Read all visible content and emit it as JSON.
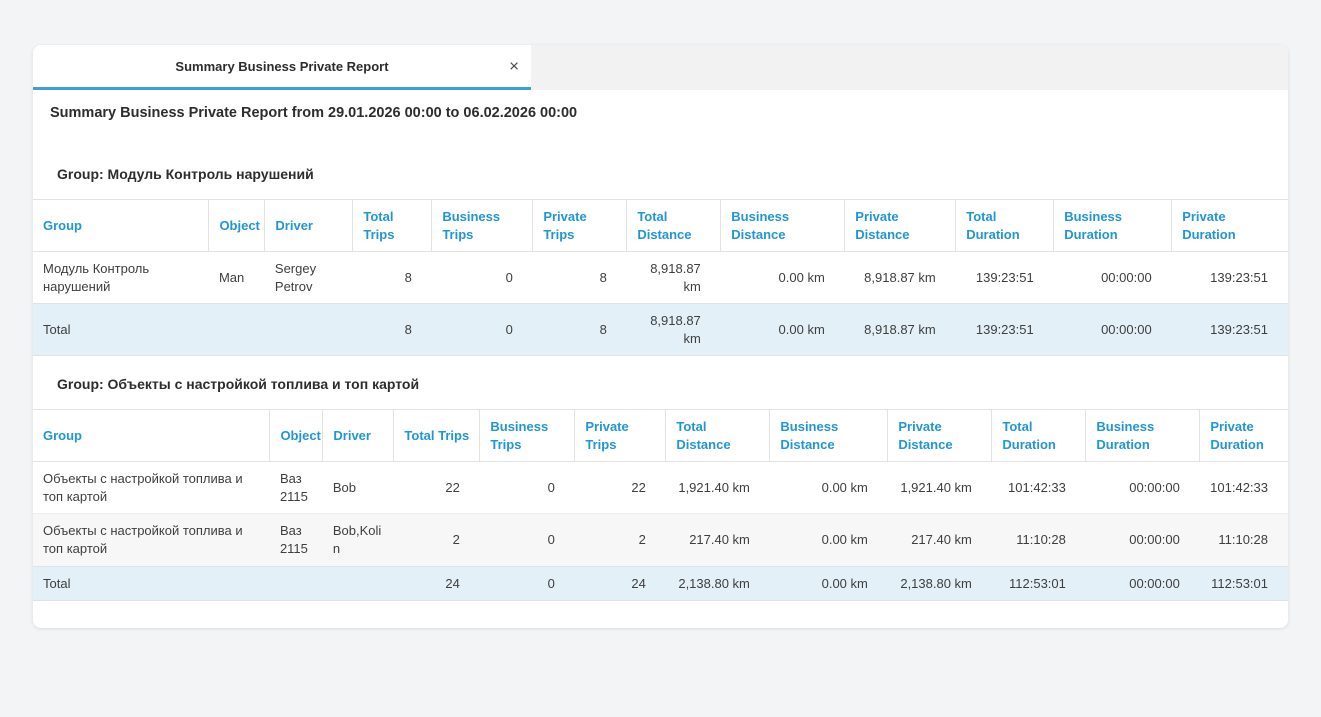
{
  "tab": {
    "title": "Summary Business Private Report",
    "close_icon": "×"
  },
  "report": {
    "title": "Summary Business Private Report from 29.01.2026 00:00 to 06.02.2026 00:00"
  },
  "columns": [
    "Group",
    "Object",
    "Driver",
    "Total Trips",
    "Business Trips",
    "Private Trips",
    "Total Distance",
    "Business Distance",
    "Private Distance",
    "Total Duration",
    "Business Duration",
    "Private Duration"
  ],
  "groups": [
    {
      "heading": "Group: Модуль Контроль нарушений",
      "rows": [
        [
          "Модуль Контроль нарушений",
          "Man",
          "Sergey Petrov",
          "8",
          "0",
          "8",
          "8,918.87 km",
          "0.00 km",
          "8,918.87 km",
          "139:23:51",
          "00:00:00",
          "139:23:51"
        ]
      ],
      "total": [
        "Total",
        "",
        "",
        "8",
        "0",
        "8",
        "8,918.87 km",
        "0.00 km",
        "8,918.87 km",
        "139:23:51",
        "00:00:00",
        "139:23:51"
      ]
    },
    {
      "heading": "Group: Объекты с настройкой топлива и топ картой",
      "rows": [
        [
          "Объекты с настройкой топлива и топ картой",
          "Ваз 2115",
          "Bob",
          "22",
          "0",
          "22",
          "1,921.40 km",
          "0.00 km",
          "1,921.40 km",
          "101:42:33",
          "00:00:00",
          "101:42:33"
        ],
        [
          "Объекты с настройкой топлива и топ картой",
          "Ваз 2115",
          "Bob,Kolin",
          "2",
          "0",
          "2",
          "217.40 km",
          "0.00 km",
          "217.40 km",
          "11:10:28",
          "00:00:00",
          "11:10:28"
        ]
      ],
      "total": [
        "Total",
        "",
        "",
        "24",
        "0",
        "24",
        "2,138.80 km",
        "0.00 km",
        "2,138.80 km",
        "112:53:01",
        "00:00:00",
        "112:53:01"
      ]
    }
  ],
  "colors": {
    "header_text_blue": "#2196d6",
    "tab_underline_blue": "#3fa0d0",
    "total_row_bg": "#e3f0f8",
    "page_bg": "#f3f4f6"
  }
}
